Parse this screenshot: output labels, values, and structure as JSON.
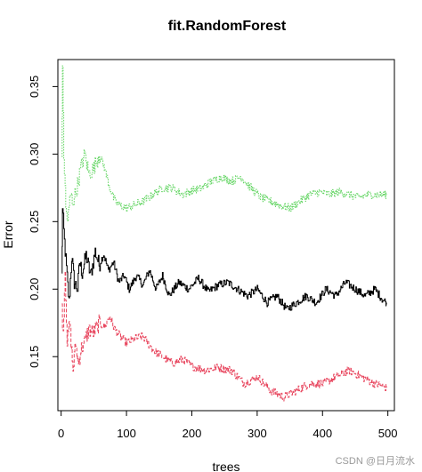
{
  "chart_data": {
    "type": "line",
    "title": "fit.RandomForest",
    "xlabel": "trees",
    "ylabel": "Error",
    "xlim": [
      -5,
      510
    ],
    "ylim": [
      0.11,
      0.37
    ],
    "xticks": [
      "0",
      "100",
      "200",
      "300",
      "400",
      "500"
    ],
    "yticks": [
      "0.15",
      "0.20",
      "0.25",
      "0.30",
      "0.35"
    ],
    "grid": false,
    "series": [
      {
        "color": "#000000",
        "dash": "solid",
        "points": [
          [
            1,
            0.21
          ],
          [
            2,
            0.258
          ],
          [
            5,
            0.235
          ],
          [
            8,
            0.215
          ],
          [
            12,
            0.19
          ],
          [
            16,
            0.224
          ],
          [
            20,
            0.205
          ],
          [
            25,
            0.2
          ],
          [
            28,
            0.22
          ],
          [
            32,
            0.212
          ],
          [
            38,
            0.225
          ],
          [
            45,
            0.21
          ],
          [
            52,
            0.228
          ],
          [
            58,
            0.218
          ],
          [
            65,
            0.226
          ],
          [
            72,
            0.214
          ],
          [
            80,
            0.22
          ],
          [
            88,
            0.205
          ],
          [
            96,
            0.21
          ],
          [
            104,
            0.2
          ],
          [
            115,
            0.21
          ],
          [
            125,
            0.203
          ],
          [
            135,
            0.214
          ],
          [
            145,
            0.2
          ],
          [
            155,
            0.21
          ],
          [
            165,
            0.195
          ],
          [
            180,
            0.205
          ],
          [
            195,
            0.2
          ],
          [
            210,
            0.208
          ],
          [
            225,
            0.198
          ],
          [
            240,
            0.203
          ],
          [
            255,
            0.205
          ],
          [
            270,
            0.2
          ],
          [
            285,
            0.195
          ],
          [
            300,
            0.2
          ],
          [
            315,
            0.19
          ],
          [
            330,
            0.195
          ],
          [
            345,
            0.185
          ],
          [
            360,
            0.19
          ],
          [
            375,
            0.195
          ],
          [
            390,
            0.19
          ],
          [
            405,
            0.2
          ],
          [
            420,
            0.195
          ],
          [
            435,
            0.205
          ],
          [
            450,
            0.2
          ],
          [
            465,
            0.195
          ],
          [
            480,
            0.2
          ],
          [
            492,
            0.192
          ],
          [
            498,
            0.19
          ]
        ]
      },
      {
        "color": "#e8475f",
        "dash": "dashed",
        "points": [
          [
            1,
            0.185
          ],
          [
            3,
            0.168
          ],
          [
            6,
            0.215
          ],
          [
            9,
            0.16
          ],
          [
            13,
            0.175
          ],
          [
            18,
            0.14
          ],
          [
            22,
            0.16
          ],
          [
            26,
            0.145
          ],
          [
            30,
            0.155
          ],
          [
            35,
            0.16
          ],
          [
            42,
            0.17
          ],
          [
            50,
            0.168
          ],
          [
            58,
            0.175
          ],
          [
            66,
            0.172
          ],
          [
            74,
            0.18
          ],
          [
            82,
            0.17
          ],
          [
            90,
            0.165
          ],
          [
            100,
            0.16
          ],
          [
            110,
            0.163
          ],
          [
            125,
            0.165
          ],
          [
            140,
            0.155
          ],
          [
            155,
            0.15
          ],
          [
            170,
            0.145
          ],
          [
            185,
            0.148
          ],
          [
            200,
            0.143
          ],
          [
            220,
            0.14
          ],
          [
            240,
            0.142
          ],
          [
            260,
            0.14
          ],
          [
            280,
            0.13
          ],
          [
            300,
            0.135
          ],
          [
            320,
            0.125
          ],
          [
            340,
            0.12
          ],
          [
            360,
            0.125
          ],
          [
            380,
            0.13
          ],
          [
            400,
            0.13
          ],
          [
            420,
            0.135
          ],
          [
            440,
            0.14
          ],
          [
            460,
            0.135
          ],
          [
            480,
            0.13
          ],
          [
            498,
            0.127
          ]
        ]
      },
      {
        "color": "#5fd45f",
        "dash": "dotted",
        "points": [
          [
            1,
            0.3
          ],
          [
            2,
            0.36
          ],
          [
            4,
            0.3
          ],
          [
            7,
            0.26
          ],
          [
            10,
            0.25
          ],
          [
            14,
            0.27
          ],
          [
            18,
            0.265
          ],
          [
            24,
            0.275
          ],
          [
            30,
            0.29
          ],
          [
            36,
            0.3
          ],
          [
            42,
            0.285
          ],
          [
            50,
            0.29
          ],
          [
            58,
            0.3
          ],
          [
            66,
            0.29
          ],
          [
            74,
            0.275
          ],
          [
            82,
            0.265
          ],
          [
            90,
            0.262
          ],
          [
            100,
            0.26
          ],
          [
            110,
            0.262
          ],
          [
            125,
            0.265
          ],
          [
            140,
            0.27
          ],
          [
            155,
            0.275
          ],
          [
            170,
            0.275
          ],
          [
            185,
            0.27
          ],
          [
            200,
            0.273
          ],
          [
            215,
            0.275
          ],
          [
            230,
            0.28
          ],
          [
            245,
            0.283
          ],
          [
            260,
            0.28
          ],
          [
            275,
            0.283
          ],
          [
            290,
            0.275
          ],
          [
            305,
            0.268
          ],
          [
            320,
            0.265
          ],
          [
            335,
            0.262
          ],
          [
            350,
            0.26
          ],
          [
            365,
            0.265
          ],
          [
            380,
            0.27
          ],
          [
            395,
            0.272
          ],
          [
            410,
            0.27
          ],
          [
            425,
            0.272
          ],
          [
            440,
            0.27
          ],
          [
            455,
            0.268
          ],
          [
            470,
            0.27
          ],
          [
            485,
            0.27
          ],
          [
            498,
            0.27
          ]
        ]
      }
    ]
  },
  "watermark": "CSDN @日月流水"
}
